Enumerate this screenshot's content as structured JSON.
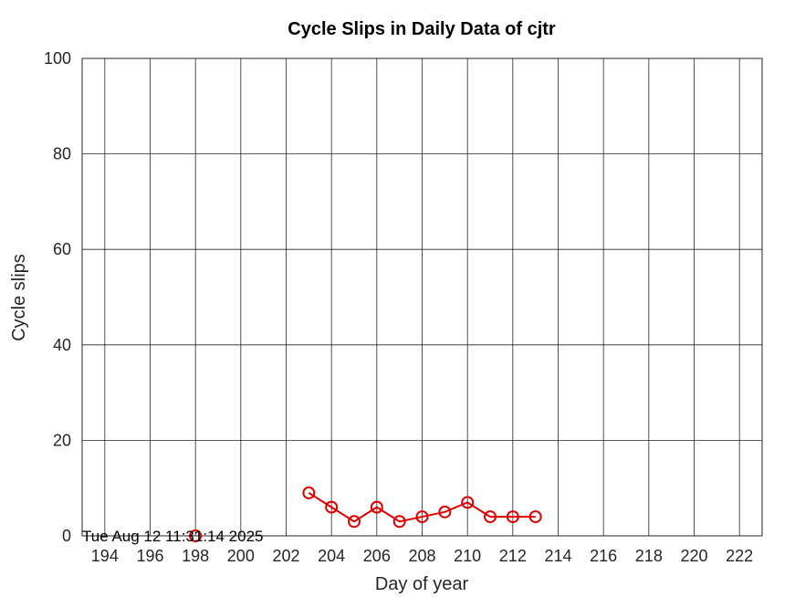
{
  "chart_data": {
    "type": "line",
    "title": "Cycle Slips in Daily Data of cjtr",
    "xlabel": "Day of year",
    "ylabel": "Cycle slips",
    "xlim": [
      193,
      223
    ],
    "ylim": [
      0,
      100
    ],
    "xticks": [
      194,
      196,
      198,
      200,
      202,
      204,
      206,
      208,
      210,
      212,
      214,
      216,
      218,
      220,
      222
    ],
    "yticks": [
      0,
      20,
      40,
      60,
      80,
      100
    ],
    "grid": true,
    "series": [
      {
        "color": "#e00000",
        "marker": "circle",
        "segments": [
          {
            "x": [
              198
            ],
            "y": [
              0
            ]
          },
          {
            "x": [
              203,
              204,
              205,
              206,
              207,
              208,
              209,
              210,
              211,
              212,
              213
            ],
            "y": [
              9,
              6,
              3,
              6,
              3,
              4,
              5,
              7,
              4,
              4,
              4
            ]
          }
        ]
      }
    ],
    "timestamp": "Tue Aug 12 11:31:14 2025"
  }
}
